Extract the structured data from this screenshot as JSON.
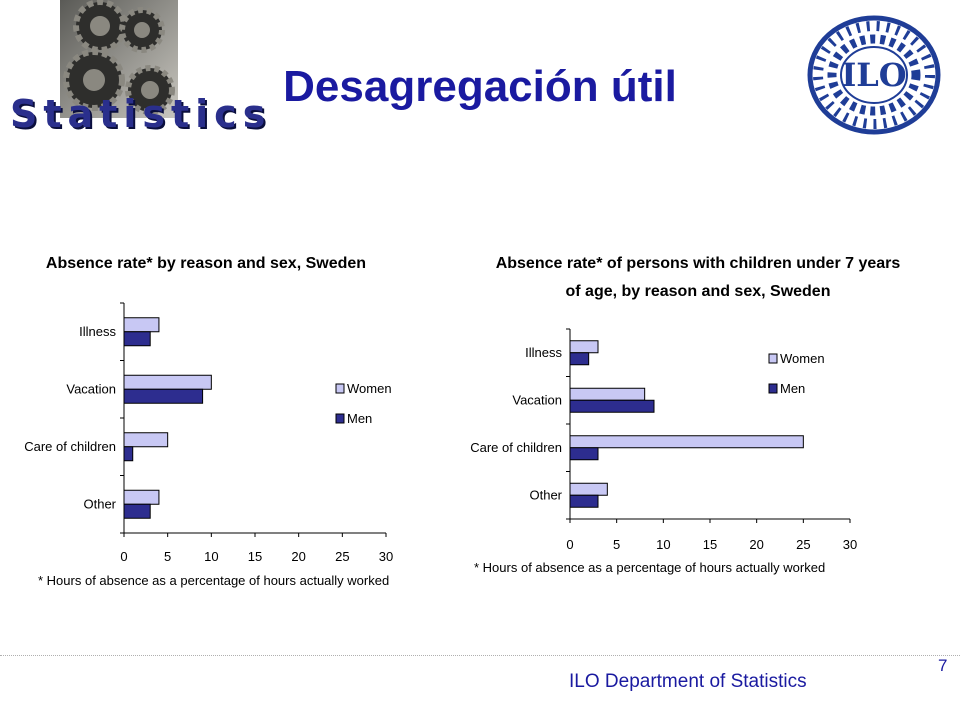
{
  "slide": {
    "title": "Desagregación útil",
    "logo_text": "Statistics",
    "ilo_logo_text": "ILO",
    "footer": "ILO Department of Statistics",
    "page_number": "7"
  },
  "chart_data": [
    {
      "type": "bar",
      "orientation": "horizontal",
      "title": "Absence rate* by reason and sex, Sweden",
      "categories": [
        "Illness",
        "Vacation",
        "Care of children",
        "Other"
      ],
      "series": [
        {
          "name": "Women",
          "values": [
            4,
            10,
            5,
            4
          ],
          "color": "#c8c8f4"
        },
        {
          "name": "Men",
          "values": [
            3,
            9,
            1,
            3
          ],
          "color": "#2d2d8f"
        }
      ],
      "xlim": [
        0,
        30
      ],
      "xticks": [
        0,
        5,
        10,
        15,
        20,
        25,
        30
      ],
      "legend": "right",
      "grid": false,
      "footnote": "* Hours of absence as a percentage of hours actually worked"
    },
    {
      "type": "bar",
      "orientation": "horizontal",
      "title": "Absence rate* of persons with children under 7 years of age, by reason and sex, Sweden",
      "title_lines": [
        "Absence rate* of persons with children under 7 years",
        "of age, by reason and sex, Sweden"
      ],
      "categories": [
        "Illness",
        "Vacation",
        "Care of children",
        "Other"
      ],
      "series": [
        {
          "name": "Women",
          "values": [
            3,
            8,
            25,
            4
          ],
          "color": "#c8c8f4"
        },
        {
          "name": "Men",
          "values": [
            2,
            9,
            3,
            3
          ],
          "color": "#2d2d8f"
        }
      ],
      "xlim": [
        0,
        30
      ],
      "xticks": [
        0,
        5,
        10,
        15,
        20,
        25,
        30
      ],
      "legend": "top-right",
      "grid": false,
      "footnote": "* Hours of absence as a percentage of hours actually worked"
    }
  ]
}
